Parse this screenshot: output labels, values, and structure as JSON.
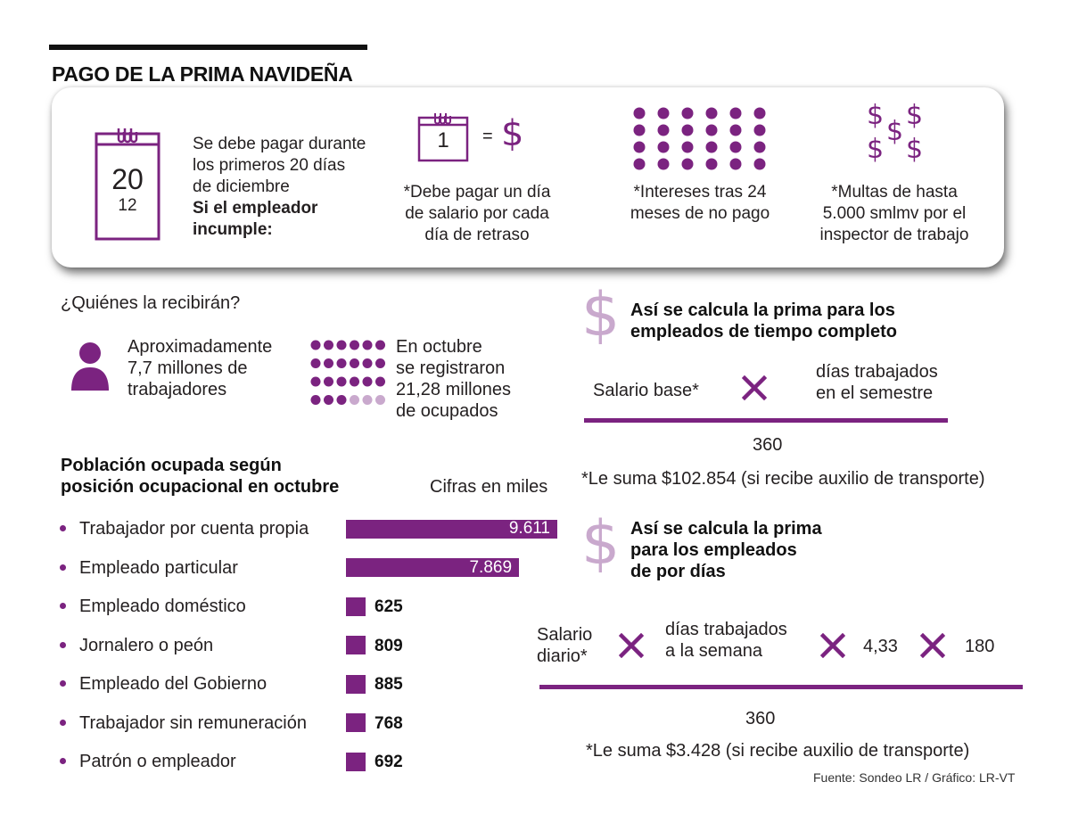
{
  "header": {
    "title": "PAGO DE LA PRIMA NAVIDEÑA"
  },
  "panel": {
    "calendar_day": "20",
    "calendar_month": "12",
    "intro_lines": [
      "Se debe pagar durante",
      "los primeros 20 días",
      "de diciembre"
    ],
    "incumple_lines": [
      "Si el empleador",
      "incumple:"
    ],
    "mini_calendar_day": "1",
    "equals_sign": "=",
    "penalty_1": [
      "*Debe pagar un día",
      "de salario por cada",
      "día de retraso"
    ],
    "penalty_2": [
      "*Intereses tras 24",
      "meses de no pago"
    ],
    "penalty_3": [
      "*Multas de hasta",
      "5.000 smlmv por el",
      "inspector de trabajo"
    ]
  },
  "who": {
    "title": "¿Quiénes la recibirán?",
    "workers": [
      "Aproximadamente",
      "7,7 millones de",
      "trabajadores"
    ],
    "employed": [
      "En octubre",
      "se registraron",
      "21,28 millones",
      "de ocupados"
    ]
  },
  "chart_data": {
    "type": "bar",
    "title": "Población ocupada según posición ocupacional en octubre",
    "title_lines": [
      "Población ocupada según",
      "posición ocupacional en octubre"
    ],
    "unit_note": "Cifras en miles",
    "categories": [
      "Trabajador por cuenta propia",
      "Empleado particular",
      "Empleado doméstico",
      "Jornalero o peón",
      "Empleado del Gobierno",
      "Trabajador sin remuneración",
      "Patrón o empleador"
    ],
    "values": [
      9611,
      7869,
      625,
      809,
      885,
      768,
      692
    ],
    "value_labels": [
      "9.611",
      "7.869",
      "625",
      "809",
      "885",
      "768",
      "692"
    ],
    "orientation": "horizontal",
    "grid": false,
    "color": "#7b2380"
  },
  "formula_full": {
    "title_lines": [
      "Así se calcula la prima para los",
      "empleados de tiempo completo"
    ],
    "term1": "Salario base*",
    "term2_lines": [
      "días trabajados",
      "en el semestre"
    ],
    "denominator": "360",
    "note": "*Le suma $102.854 (si recibe auxilio de transporte)"
  },
  "formula_days": {
    "title_lines": [
      "Así se calcula la prima",
      "para los empleados",
      "de por días"
    ],
    "term1_lines": [
      "Salario",
      "diario*"
    ],
    "term2_lines": [
      "días trabajados",
      "a la semana"
    ],
    "term3": "4,33",
    "term4": "180",
    "denominator": "360",
    "note": "*Le suma $3.428 (si recibe auxilio de transporte)"
  },
  "footer": {
    "source": "Fuente: Sondeo LR / Gráfico: LR-VT"
  },
  "colors": {
    "accent": "#7b2380",
    "accent_light": "#c9a9cd",
    "text": "#231f20"
  }
}
